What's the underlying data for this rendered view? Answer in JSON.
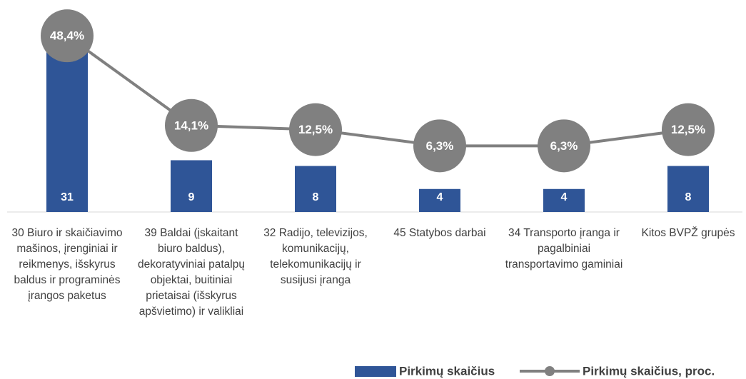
{
  "chart_data": {
    "type": "bar_line",
    "categories": [
      "30 Biuro ir skaičiavimo mašinos, įrenginiai ir reikmenys, išskyrus baldus ir programinės įrangos paketus",
      "39 Baldai (įskaitant biuro baldus), dekoratyviniai patalpų objektai, buitiniai prietaisai (išskyrus apšvietimo) ir valikliai",
      "32 Radijo, televizijos, komunikacijų, telekomunikacijų ir susijusi įranga",
      "45 Statybos darbai",
      "34 Transporto įranga ir pagalbiniai transportavimo gaminiai",
      "Kitos BVPŽ grupės"
    ],
    "series": [
      {
        "name": "Pirkimų skaičius",
        "type": "bar",
        "color": "#2f5597",
        "values": [
          31,
          9,
          8,
          4,
          4,
          8
        ]
      },
      {
        "name": "Pirkimų skaičius,  proc.",
        "type": "line",
        "axis": "y2",
        "color": "#808080",
        "values": [
          48.4,
          14.1,
          12.5,
          6.3,
          6.3,
          12.5
        ],
        "value_labels": [
          "48,4%",
          "14,1%",
          "12,5%",
          "6,3%",
          "6,3%",
          "12,5%"
        ]
      }
    ],
    "ylim": [
      0,
      35
    ],
    "y2lim": [
      -19,
      58
    ],
    "legend": "bottom-right"
  }
}
